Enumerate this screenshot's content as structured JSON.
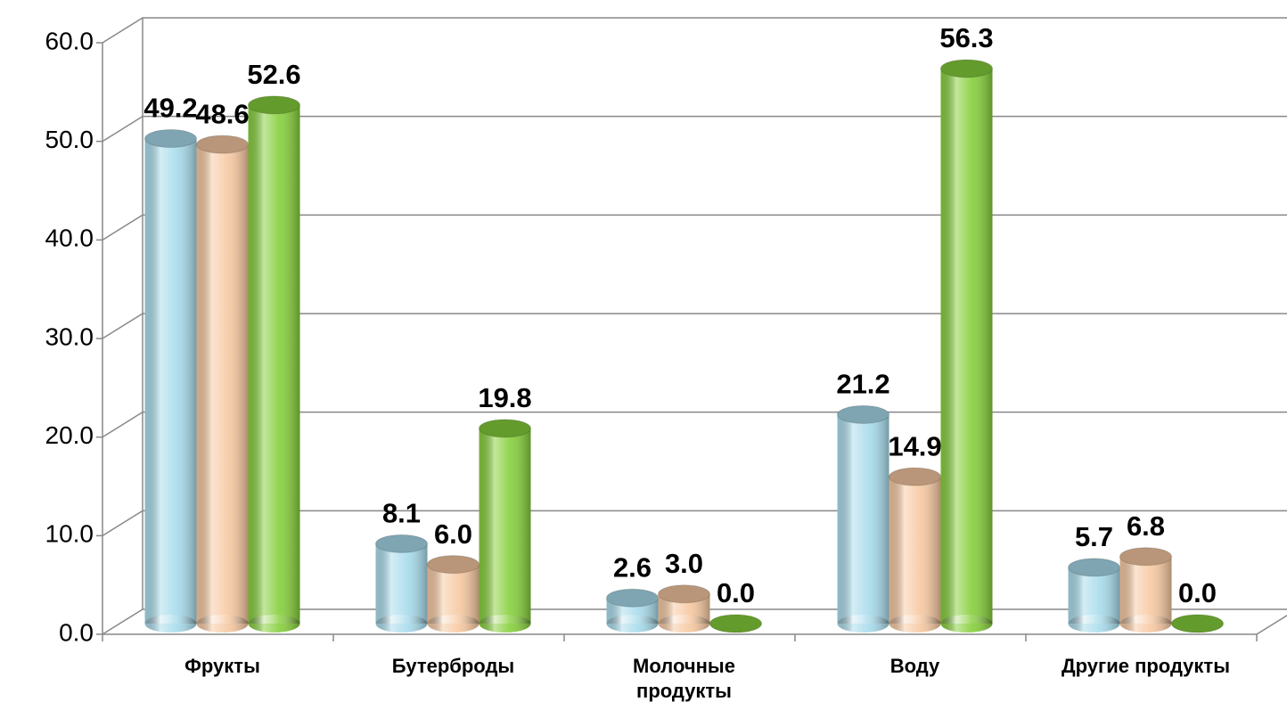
{
  "chart_data": {
    "type": "bar3d",
    "categories": [
      "Фрукты",
      "Бутерброды",
      "Молочные продукты",
      "Воду",
      "Другие продукты"
    ],
    "series": [
      {
        "color": "#a9dcec",
        "values": [
          49.2,
          8.1,
          2.6,
          21.2,
          5.7
        ],
        "value_labels": [
          "49.2",
          "8.1",
          "2.6",
          "21.2",
          "5.7"
        ]
      },
      {
        "color": "#f7c9a2",
        "values": [
          48.6,
          6.0,
          3.0,
          14.9,
          6.8
        ],
        "value_labels": [
          "48.6",
          "6.0",
          "3.0",
          "14.9",
          "6.8"
        ]
      },
      {
        "color": "#86cf3c",
        "values": [
          52.6,
          19.8,
          0.0,
          56.3,
          0.0
        ],
        "value_labels": [
          "52.6",
          "19.8",
          "0.0",
          "56.3",
          "0.0"
        ]
      }
    ],
    "ylim": [
      0,
      60
    ],
    "yticks": [
      {
        "value": 0,
        "label": "0.0"
      },
      {
        "value": 10,
        "label": "10.0"
      },
      {
        "value": 20,
        "label": "20.0"
      },
      {
        "value": 30,
        "label": "30.0"
      },
      {
        "value": 40,
        "label": "40.0"
      },
      {
        "value": 50,
        "label": "50.0"
      },
      {
        "value": 60,
        "label": "60.0"
      }
    ],
    "grid": true
  }
}
